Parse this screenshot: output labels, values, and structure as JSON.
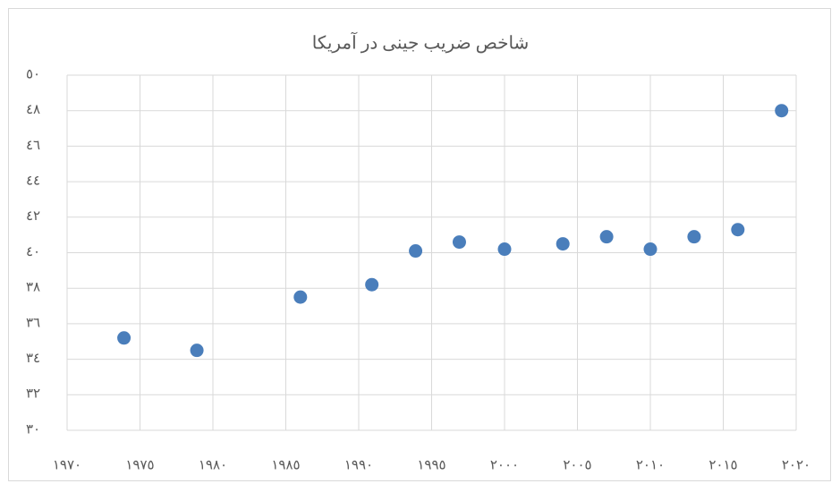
{
  "chart_data": {
    "type": "scatter",
    "title": "شاخص ضریب جینی در آمریکا",
    "x": [
      1973.9,
      1978.9,
      1986.0,
      1990.9,
      1993.9,
      1996.9,
      2000.0,
      2004.0,
      2007.0,
      2010.0,
      2013.0,
      2016.0,
      2019.0
    ],
    "values": [
      35.2,
      34.5,
      37.5,
      38.2,
      40.1,
      40.6,
      40.2,
      40.5,
      40.9,
      40.2,
      40.9,
      41.3,
      48.0
    ],
    "color": "#4a7ebb",
    "xlim": [
      1970,
      2020
    ],
    "xticks": [
      {
        "value": 1970,
        "label": "١٩٧٠"
      },
      {
        "value": 1975,
        "label": "١٩٧٥"
      },
      {
        "value": 1980,
        "label": "١٩٨٠"
      },
      {
        "value": 1985,
        "label": "١٩٨٥"
      },
      {
        "value": 1990,
        "label": "١٩٩٠"
      },
      {
        "value": 1995,
        "label": "١٩٩٥"
      },
      {
        "value": 2000,
        "label": "٢٠٠٠"
      },
      {
        "value": 2005,
        "label": "٢٠٠٥"
      },
      {
        "value": 2010,
        "label": "٢٠١٠"
      },
      {
        "value": 2015,
        "label": "٢٠١٥"
      },
      {
        "value": 2020,
        "label": "٢٠٢٠"
      }
    ],
    "ylim": [
      30,
      50
    ],
    "yticks": [
      {
        "value": 30,
        "label": "٣٠"
      },
      {
        "value": 32,
        "label": "٣٢"
      },
      {
        "value": 34,
        "label": "٣٤"
      },
      {
        "value": 36,
        "label": "٣٦"
      },
      {
        "value": 38,
        "label": "٣٨"
      },
      {
        "value": 40,
        "label": "٤٠"
      },
      {
        "value": 42,
        "label": "٤٢"
      },
      {
        "value": 44,
        "label": "٤٤"
      },
      {
        "value": 46,
        "label": "٤٦"
      },
      {
        "value": 48,
        "label": "٤٨"
      },
      {
        "value": 50,
        "label": "٥٠"
      }
    ],
    "grid": true
  }
}
